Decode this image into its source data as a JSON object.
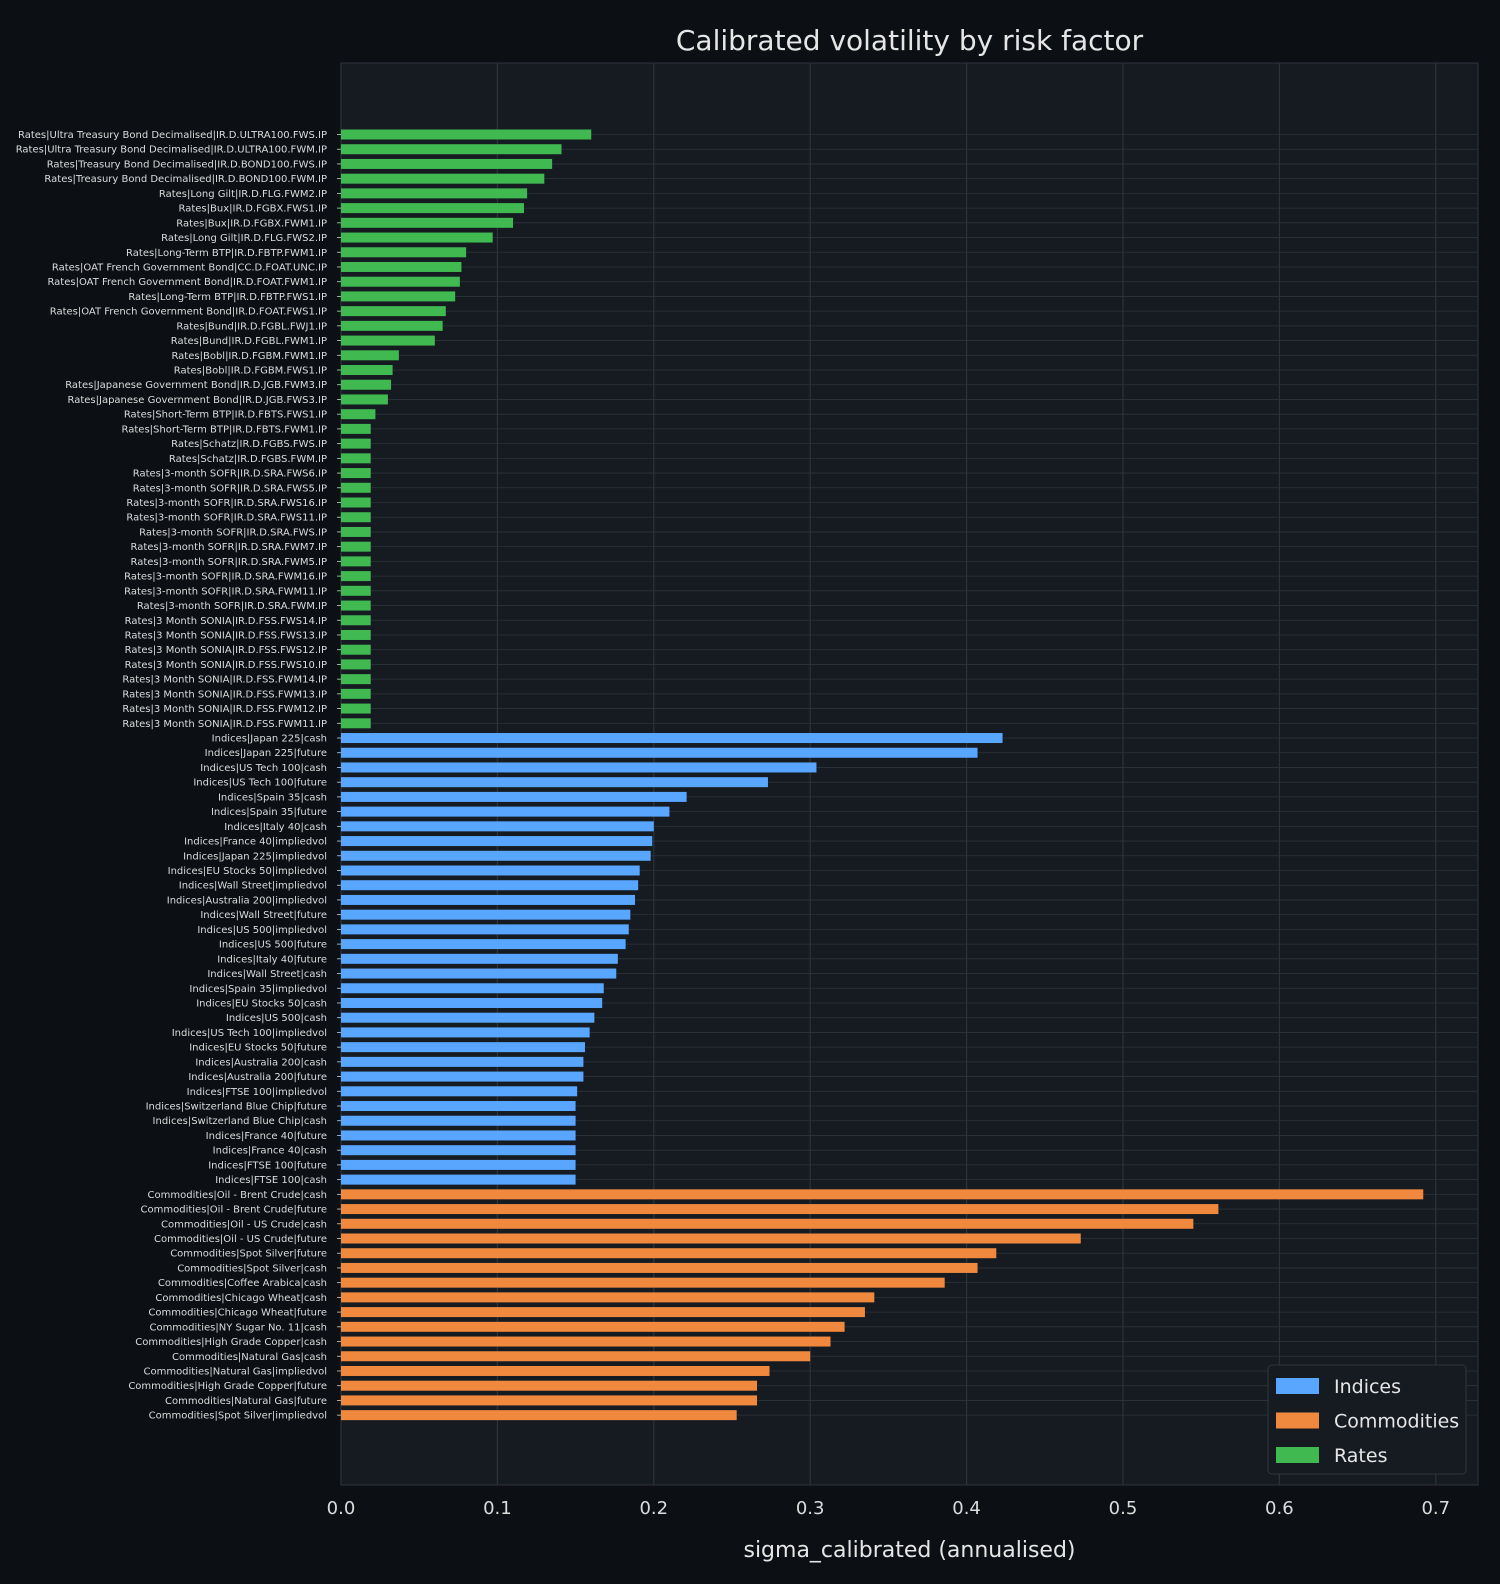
{
  "chart_data": {
    "type": "bar",
    "orientation": "horizontal",
    "title": "Calibrated volatility by risk factor",
    "xlabel": "sigma_calibrated (annualised)",
    "ylabel": "",
    "xlim": [
      0,
      0.727
    ],
    "xticks": [
      "0.0",
      "0.1",
      "0.2",
      "0.3",
      "0.4",
      "0.5",
      "0.6",
      "0.7"
    ],
    "grid": true,
    "legend_position": "lower-right",
    "colors": {
      "Indices": "#58a6ff",
      "Commodities": "#f0883e",
      "Rates": "#3fb950"
    },
    "legend": [
      "Indices",
      "Commodities",
      "Rates"
    ],
    "bars": [
      {
        "label": "Rates|Ultra Treasury Bond Decimalised|IR.D.ULTRA100.FWS.IP",
        "value": 0.16,
        "group": "Rates"
      },
      {
        "label": "Rates|Ultra Treasury Bond Decimalised|IR.D.ULTRA100.FWM.IP",
        "value": 0.141,
        "group": "Rates"
      },
      {
        "label": "Rates|Treasury Bond Decimalised|IR.D.BOND100.FWS.IP",
        "value": 0.135,
        "group": "Rates"
      },
      {
        "label": "Rates|Treasury Bond Decimalised|IR.D.BOND100.FWM.IP",
        "value": 0.13,
        "group": "Rates"
      },
      {
        "label": "Rates|Long Gilt|IR.D.FLG.FWM2.IP",
        "value": 0.119,
        "group": "Rates"
      },
      {
        "label": "Rates|Bux|IR.D.FGBX.FWS1.IP",
        "value": 0.117,
        "group": "Rates"
      },
      {
        "label": "Rates|Bux|IR.D.FGBX.FWM1.IP",
        "value": 0.11,
        "group": "Rates"
      },
      {
        "label": "Rates|Long Gilt|IR.D.FLG.FWS2.IP",
        "value": 0.097,
        "group": "Rates"
      },
      {
        "label": "Rates|Long-Term BTP|IR.D.FBTP.FWM1.IP",
        "value": 0.08,
        "group": "Rates"
      },
      {
        "label": "Rates|OAT French Government Bond|CC.D.FOAT.UNC.IP",
        "value": 0.077,
        "group": "Rates"
      },
      {
        "label": "Rates|OAT French Government Bond|IR.D.FOAT.FWM1.IP",
        "value": 0.076,
        "group": "Rates"
      },
      {
        "label": "Rates|Long-Term BTP|IR.D.FBTP.FWS1.IP",
        "value": 0.073,
        "group": "Rates"
      },
      {
        "label": "Rates|OAT French Government Bond|IR.D.FOAT.FWS1.IP",
        "value": 0.067,
        "group": "Rates"
      },
      {
        "label": "Rates|Bund|IR.D.FGBL.FWJ1.IP",
        "value": 0.065,
        "group": "Rates"
      },
      {
        "label": "Rates|Bund|IR.D.FGBL.FWM1.IP",
        "value": 0.06,
        "group": "Rates"
      },
      {
        "label": "Rates|Bobl|IR.D.FGBM.FWM1.IP",
        "value": 0.037,
        "group": "Rates"
      },
      {
        "label": "Rates|Bobl|IR.D.FGBM.FWS1.IP",
        "value": 0.033,
        "group": "Rates"
      },
      {
        "label": "Rates|Japanese Government Bond|IR.D.JGB.FWM3.IP",
        "value": 0.032,
        "group": "Rates"
      },
      {
        "label": "Rates|Japanese Government Bond|IR.D.JGB.FWS3.IP",
        "value": 0.03,
        "group": "Rates"
      },
      {
        "label": "Rates|Short-Term BTP|IR.D.FBTS.FWS1.IP",
        "value": 0.022,
        "group": "Rates"
      },
      {
        "label": "Rates|Short-Term BTP|IR.D.FBTS.FWM1.IP",
        "value": 0.019,
        "group": "Rates"
      },
      {
        "label": "Rates|Schatz|IR.D.FGBS.FWS.IP",
        "value": 0.019,
        "group": "Rates"
      },
      {
        "label": "Rates|Schatz|IR.D.FGBS.FWM.IP",
        "value": 0.019,
        "group": "Rates"
      },
      {
        "label": "Rates|3-month SOFR|IR.D.SRA.FWS6.IP",
        "value": 0.019,
        "group": "Rates"
      },
      {
        "label": "Rates|3-month SOFR|IR.D.SRA.FWS5.IP",
        "value": 0.019,
        "group": "Rates"
      },
      {
        "label": "Rates|3-month SOFR|IR.D.SRA.FWS16.IP",
        "value": 0.019,
        "group": "Rates"
      },
      {
        "label": "Rates|3-month SOFR|IR.D.SRA.FWS11.IP",
        "value": 0.019,
        "group": "Rates"
      },
      {
        "label": "Rates|3-month SOFR|IR.D.SRA.FWS.IP",
        "value": 0.019,
        "group": "Rates"
      },
      {
        "label": "Rates|3-month SOFR|IR.D.SRA.FWM7.IP",
        "value": 0.019,
        "group": "Rates"
      },
      {
        "label": "Rates|3-month SOFR|IR.D.SRA.FWM5.IP",
        "value": 0.019,
        "group": "Rates"
      },
      {
        "label": "Rates|3-month SOFR|IR.D.SRA.FWM16.IP",
        "value": 0.019,
        "group": "Rates"
      },
      {
        "label": "Rates|3-month SOFR|IR.D.SRA.FWM11.IP",
        "value": 0.019,
        "group": "Rates"
      },
      {
        "label": "Rates|3-month SOFR|IR.D.SRA.FWM.IP",
        "value": 0.019,
        "group": "Rates"
      },
      {
        "label": "Rates|3 Month SONIA|IR.D.FSS.FWS14.IP",
        "value": 0.019,
        "group": "Rates"
      },
      {
        "label": "Rates|3 Month SONIA|IR.D.FSS.FWS13.IP",
        "value": 0.019,
        "group": "Rates"
      },
      {
        "label": "Rates|3 Month SONIA|IR.D.FSS.FWS12.IP",
        "value": 0.019,
        "group": "Rates"
      },
      {
        "label": "Rates|3 Month SONIA|IR.D.FSS.FWS10.IP",
        "value": 0.019,
        "group": "Rates"
      },
      {
        "label": "Rates|3 Month SONIA|IR.D.FSS.FWM14.IP",
        "value": 0.019,
        "group": "Rates"
      },
      {
        "label": "Rates|3 Month SONIA|IR.D.FSS.FWM13.IP",
        "value": 0.019,
        "group": "Rates"
      },
      {
        "label": "Rates|3 Month SONIA|IR.D.FSS.FWM12.IP",
        "value": 0.019,
        "group": "Rates"
      },
      {
        "label": "Rates|3 Month SONIA|IR.D.FSS.FWM11.IP",
        "value": 0.019,
        "group": "Rates"
      },
      {
        "label": "Indices|Japan 225|cash",
        "value": 0.423,
        "group": "Indices"
      },
      {
        "label": "Indices|Japan 225|future",
        "value": 0.407,
        "group": "Indices"
      },
      {
        "label": "Indices|US Tech 100|cash",
        "value": 0.304,
        "group": "Indices"
      },
      {
        "label": "Indices|US Tech 100|future",
        "value": 0.273,
        "group": "Indices"
      },
      {
        "label": "Indices|Spain 35|cash",
        "value": 0.221,
        "group": "Indices"
      },
      {
        "label": "Indices|Spain 35|future",
        "value": 0.21,
        "group": "Indices"
      },
      {
        "label": "Indices|Italy 40|cash",
        "value": 0.2,
        "group": "Indices"
      },
      {
        "label": "Indices|France 40|impliedvol",
        "value": 0.199,
        "group": "Indices"
      },
      {
        "label": "Indices|Japan 225|impliedvol",
        "value": 0.198,
        "group": "Indices"
      },
      {
        "label": "Indices|EU Stocks 50|impliedvol",
        "value": 0.191,
        "group": "Indices"
      },
      {
        "label": "Indices|Wall Street|impliedvol",
        "value": 0.19,
        "group": "Indices"
      },
      {
        "label": "Indices|Australia 200|impliedvol",
        "value": 0.188,
        "group": "Indices"
      },
      {
        "label": "Indices|Wall Street|future",
        "value": 0.185,
        "group": "Indices"
      },
      {
        "label": "Indices|US 500|impliedvol",
        "value": 0.184,
        "group": "Indices"
      },
      {
        "label": "Indices|US 500|future",
        "value": 0.182,
        "group": "Indices"
      },
      {
        "label": "Indices|Italy 40|future",
        "value": 0.177,
        "group": "Indices"
      },
      {
        "label": "Indices|Wall Street|cash",
        "value": 0.176,
        "group": "Indices"
      },
      {
        "label": "Indices|Spain 35|impliedvol",
        "value": 0.168,
        "group": "Indices"
      },
      {
        "label": "Indices|EU Stocks 50|cash",
        "value": 0.167,
        "group": "Indices"
      },
      {
        "label": "Indices|US 500|cash",
        "value": 0.162,
        "group": "Indices"
      },
      {
        "label": "Indices|US Tech 100|impliedvol",
        "value": 0.159,
        "group": "Indices"
      },
      {
        "label": "Indices|EU Stocks 50|future",
        "value": 0.156,
        "group": "Indices"
      },
      {
        "label": "Indices|Australia 200|cash",
        "value": 0.155,
        "group": "Indices"
      },
      {
        "label": "Indices|Australia 200|future",
        "value": 0.155,
        "group": "Indices"
      },
      {
        "label": "Indices|FTSE 100|impliedvol",
        "value": 0.151,
        "group": "Indices"
      },
      {
        "label": "Indices|Switzerland Blue Chip|future",
        "value": 0.15,
        "group": "Indices"
      },
      {
        "label": "Indices|Switzerland Blue Chip|cash",
        "value": 0.15,
        "group": "Indices"
      },
      {
        "label": "Indices|France 40|future",
        "value": 0.15,
        "group": "Indices"
      },
      {
        "label": "Indices|France 40|cash",
        "value": 0.15,
        "group": "Indices"
      },
      {
        "label": "Indices|FTSE 100|future",
        "value": 0.15,
        "group": "Indices"
      },
      {
        "label": "Indices|FTSE 100|cash",
        "value": 0.15,
        "group": "Indices"
      },
      {
        "label": "Commodities|Oil - Brent Crude|cash",
        "value": 0.692,
        "group": "Commodities"
      },
      {
        "label": "Commodities|Oil - Brent Crude|future",
        "value": 0.561,
        "group": "Commodities"
      },
      {
        "label": "Commodities|Oil - US Crude|cash",
        "value": 0.545,
        "group": "Commodities"
      },
      {
        "label": "Commodities|Oil - US Crude|future",
        "value": 0.473,
        "group": "Commodities"
      },
      {
        "label": "Commodities|Spot Silver|future",
        "value": 0.419,
        "group": "Commodities"
      },
      {
        "label": "Commodities|Spot Silver|cash",
        "value": 0.407,
        "group": "Commodities"
      },
      {
        "label": "Commodities|Coffee Arabica|cash",
        "value": 0.386,
        "group": "Commodities"
      },
      {
        "label": "Commodities|Chicago Wheat|cash",
        "value": 0.341,
        "group": "Commodities"
      },
      {
        "label": "Commodities|Chicago Wheat|future",
        "value": 0.335,
        "group": "Commodities"
      },
      {
        "label": "Commodities|NY Sugar No. 11|cash",
        "value": 0.322,
        "group": "Commodities"
      },
      {
        "label": "Commodities|High Grade Copper|cash",
        "value": 0.313,
        "group": "Commodities"
      },
      {
        "label": "Commodities|Natural Gas|cash",
        "value": 0.3,
        "group": "Commodities"
      },
      {
        "label": "Commodities|Natural Gas|impliedvol",
        "value": 0.274,
        "group": "Commodities"
      },
      {
        "label": "Commodities|High Grade Copper|future",
        "value": 0.266,
        "group": "Commodities"
      },
      {
        "label": "Commodities|Natural Gas|future",
        "value": 0.266,
        "group": "Commodities"
      },
      {
        "label": "Commodities|Spot Silver|impliedvol",
        "value": 0.253,
        "group": "Commodities"
      }
    ]
  }
}
